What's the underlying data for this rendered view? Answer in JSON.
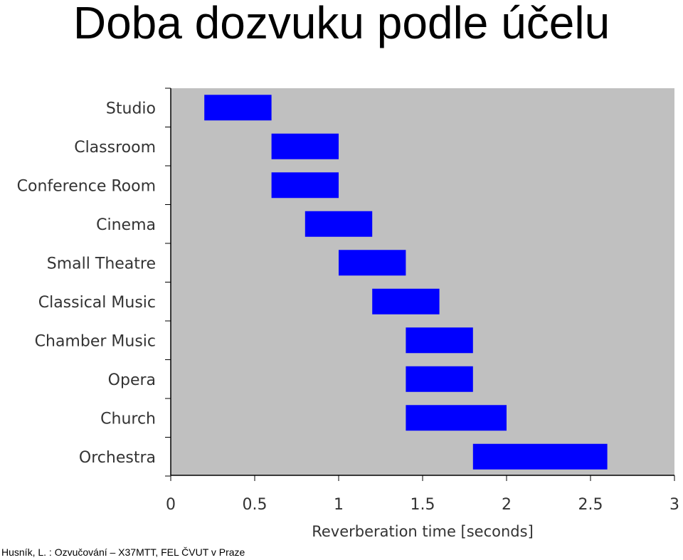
{
  "page": {
    "title": "Doba dozvuku podle účelu",
    "footer": "Husník, L. : Ozvučování – X37MTT, FEL ČVUT v Praze"
  },
  "chart_data": {
    "type": "bar",
    "orientation": "horizontal-range",
    "xlabel": "Reverberation time [seconds]",
    "xlim": [
      0,
      3
    ],
    "xticks": [
      0,
      0.5,
      1,
      1.5,
      2,
      2.5,
      3
    ],
    "xtick_labels": [
      "0",
      "0.5",
      "1",
      "1.5",
      "2",
      "2.5",
      "3"
    ],
    "grid": false,
    "categories": [
      "Studio",
      "Classroom",
      "Conference Room",
      "Cinema",
      "Small Theatre",
      "Classical Music",
      "Chamber Music",
      "Opera",
      "Church",
      "Orchestra"
    ],
    "ranges": [
      [
        0.2,
        0.6
      ],
      [
        0.6,
        1.0
      ],
      [
        0.6,
        1.0
      ],
      [
        0.8,
        1.2
      ],
      [
        1.0,
        1.4
      ],
      [
        1.2,
        1.6
      ],
      [
        1.4,
        1.8
      ],
      [
        1.4,
        1.8
      ],
      [
        1.4,
        2.0
      ],
      [
        1.8,
        2.6
      ]
    ],
    "bar_color": "#0000ff",
    "plot_background": "#c0c0c0"
  }
}
